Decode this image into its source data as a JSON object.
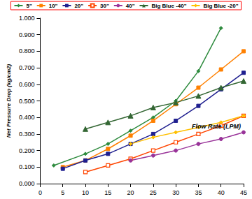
{
  "chart_data": {
    "type": "line",
    "x_label": "Flow Rate (LPM)",
    "y_label": "Net Pressure Drop (kg/cm2)",
    "xlim": [
      0,
      45
    ],
    "xticks": [
      0,
      5,
      10,
      15,
      20,
      25,
      30,
      35,
      40,
      45
    ],
    "ylim": [
      0,
      1
    ],
    "yticks": [
      {
        "value": 0,
        "label": "0.000"
      },
      {
        "value": 0.1,
        "label": "0.100"
      },
      {
        "value": 0.2,
        "label": "0.200"
      },
      {
        "value": 0.3,
        "label": "0.300"
      },
      {
        "value": 0.4,
        "label": "0.400"
      },
      {
        "value": 0.5,
        "label": "0.500"
      },
      {
        "value": 0.6,
        "label": "0.600"
      },
      {
        "value": 0.7,
        "label": "0.700"
      },
      {
        "value": 0.8,
        "label": "0.800"
      },
      {
        "value": 0.9,
        "label": "0.900"
      },
      {
        "value": 1,
        "label": "1.000"
      }
    ],
    "grid": false,
    "legend": "top",
    "series": [
      {
        "name": "5\"",
        "color": "#2e8b3e",
        "marker": "diamond",
        "x": [
          3,
          10,
          15,
          20,
          25,
          30,
          35,
          40
        ],
        "values": [
          0.11,
          0.18,
          0.24,
          0.32,
          0.4,
          0.5,
          0.68,
          0.94
        ]
      },
      {
        "name": "10\"",
        "color": "#ff8000",
        "marker": "square",
        "x": [
          5,
          10,
          15,
          20,
          25,
          30,
          35,
          40,
          45
        ],
        "values": [
          0.1,
          0.14,
          0.21,
          0.29,
          0.38,
          0.48,
          0.58,
          0.69,
          0.8
        ]
      },
      {
        "name": "20\"",
        "color": "#1f1f8f",
        "marker": "square",
        "x": [
          5,
          10,
          15,
          20,
          25,
          30,
          35,
          40,
          45
        ],
        "values": [
          0.09,
          0.14,
          0.18,
          0.24,
          0.3,
          0.38,
          0.47,
          0.57,
          0.67
        ]
      },
      {
        "name": "30\"",
        "color": "#ff4500",
        "marker": "open-square",
        "x": [
          10,
          15,
          20,
          25,
          30,
          35,
          40,
          45
        ],
        "values": [
          0.07,
          0.11,
          0.15,
          0.2,
          0.25,
          0.3,
          0.35,
          0.41
        ]
      },
      {
        "name": "40\"",
        "color": "#993399",
        "marker": "circle",
        "x": [
          20,
          25,
          30,
          35,
          40,
          45
        ],
        "values": [
          0.14,
          0.17,
          0.2,
          0.24,
          0.27,
          0.31
        ]
      },
      {
        "name": "Big Blue -40\"",
        "color": "#336633",
        "marker": "triangle",
        "x": [
          10,
          15,
          20,
          25,
          30,
          35,
          40,
          45
        ],
        "values": [
          0.33,
          0.37,
          0.41,
          0.46,
          0.49,
          0.53,
          0.58,
          0.62
        ]
      },
      {
        "name": "Big Blue -20\"",
        "color": "#ffc000",
        "marker": "diamond",
        "x": [
          20,
          25,
          30,
          35,
          40,
          45
        ],
        "values": [
          0.24,
          0.28,
          0.31,
          0.34,
          0.37,
          0.41
        ]
      }
    ]
  }
}
